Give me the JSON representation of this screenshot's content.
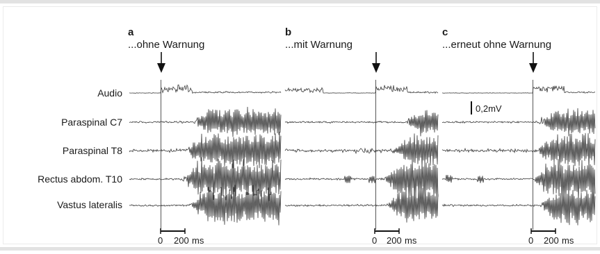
{
  "panels": [
    {
      "letter": "a",
      "condition": "...ohne Warnung"
    },
    {
      "letter": "b",
      "condition": "...mit Warnung"
    },
    {
      "letter": "c",
      "condition": "...erneut ohne Warnung"
    }
  ],
  "channels": [
    {
      "name": "Audio"
    },
    {
      "name": "Paraspinal C7"
    },
    {
      "name": "Paraspinal T8"
    },
    {
      "name": "Rectus abdom. T10"
    },
    {
      "name": "Vastus lateralis"
    }
  ],
  "amplitude_scale": {
    "label": "0,2mV"
  },
  "time_scale": {
    "zero": "0",
    "value": "200",
    "unit": "ms"
  },
  "colors": {
    "trace": "#3a3a3a",
    "stimulus_line": "#555555",
    "border": "#e2e2e2"
  }
}
